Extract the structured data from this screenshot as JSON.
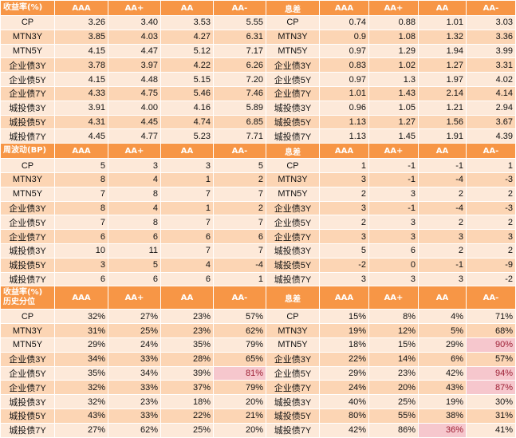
{
  "columns": [
    "AAA",
    "AA+",
    "AA",
    "AA-"
  ],
  "rows": [
    "CP",
    "MTN3Y",
    "MTN5Y",
    "企业债3Y",
    "企业债5Y",
    "企业债7Y",
    "城投债3Y",
    "城投债5Y",
    "城投债7Y"
  ],
  "sections": [
    {
      "left_title": "收益率(%)",
      "right_title": "息差",
      "left_values": [
        [
          "3.26",
          "3.40",
          "3.53",
          "5.55"
        ],
        [
          "3.85",
          "4.03",
          "4.27",
          "6.31"
        ],
        [
          "4.15",
          "4.47",
          "5.12",
          "7.17"
        ],
        [
          "3.78",
          "3.97",
          "4.22",
          "6.26"
        ],
        [
          "4.15",
          "4.48",
          "5.15",
          "7.20"
        ],
        [
          "4.33",
          "4.75",
          "5.46",
          "7.46"
        ],
        [
          "3.91",
          "4.00",
          "4.16",
          "5.89"
        ],
        [
          "4.31",
          "4.45",
          "4.74",
          "6.85"
        ],
        [
          "4.45",
          "4.77",
          "5.23",
          "7.71"
        ]
      ],
      "right_values": [
        [
          "0.74",
          "0.88",
          "1.01",
          "3.03"
        ],
        [
          "0.9",
          "1.08",
          "1.32",
          "3.36"
        ],
        [
          "0.97",
          "1.29",
          "1.94",
          "3.99"
        ],
        [
          "0.83",
          "1.02",
          "1.27",
          "3.31"
        ],
        [
          "0.97",
          "1.3",
          "1.97",
          "4.02"
        ],
        [
          "1.01",
          "1.43",
          "2.14",
          "4.14"
        ],
        [
          "0.96",
          "1.05",
          "1.21",
          "2.94"
        ],
        [
          "1.13",
          "1.27",
          "1.56",
          "3.67"
        ],
        [
          "1.13",
          "1.45",
          "1.91",
          "4.39"
        ]
      ]
    },
    {
      "left_title": "周波动(BP)",
      "right_title": "息差",
      "left_values": [
        [
          "5",
          "3",
          "3",
          "5"
        ],
        [
          "8",
          "4",
          "1",
          "2"
        ],
        [
          "7",
          "8",
          "7",
          "7"
        ],
        [
          "8",
          "4",
          "1",
          "2"
        ],
        [
          "7",
          "8",
          "7",
          "7"
        ],
        [
          "6",
          "6",
          "6",
          "6"
        ],
        [
          "10",
          "11",
          "7",
          "7"
        ],
        [
          "3",
          "5",
          "4",
          "-4"
        ],
        [
          "6",
          "6",
          "6",
          "1"
        ]
      ],
      "right_values": [
        [
          "1",
          "-1",
          "-1",
          "1"
        ],
        [
          "3",
          "-1",
          "-4",
          "-3"
        ],
        [
          "2",
          "3",
          "2",
          "2"
        ],
        [
          "3",
          "-1",
          "-4",
          "-3"
        ],
        [
          "2",
          "3",
          "2",
          "2"
        ],
        [
          "3",
          "3",
          "3",
          "3"
        ],
        [
          "5",
          "6",
          "2",
          "2"
        ],
        [
          "-2",
          "0",
          "-1",
          "-9"
        ],
        [
          "3",
          "3",
          "3",
          "-2"
        ]
      ]
    },
    {
      "left_title_line1": "收益率(%)",
      "left_title_line2": "历史分位",
      "right_title": "息差",
      "left_values": [
        [
          "32%",
          "27%",
          "23%",
          "57%"
        ],
        [
          "31%",
          "25%",
          "23%",
          "62%"
        ],
        [
          "29%",
          "24%",
          "35%",
          "79%"
        ],
        [
          "34%",
          "33%",
          "28%",
          "65%"
        ],
        [
          "35%",
          "34%",
          "39%",
          "81%"
        ],
        [
          "32%",
          "33%",
          "37%",
          "79%"
        ],
        [
          "32%",
          "23%",
          "18%",
          "20%"
        ],
        [
          "43%",
          "33%",
          "22%",
          "21%"
        ],
        [
          "27%",
          "62%",
          "25%",
          "20%"
        ]
      ],
      "right_values": [
        [
          "15%",
          "8%",
          "4%",
          "71%"
        ],
        [
          "19%",
          "12%",
          "5%",
          "68%"
        ],
        [
          "18%",
          "15%",
          "29%",
          "90%"
        ],
        [
          "22%",
          "14%",
          "6%",
          "57%"
        ],
        [
          "29%",
          "23%",
          "42%",
          "94%"
        ],
        [
          "24%",
          "20%",
          "43%",
          "87%"
        ],
        [
          "40%",
          "25%",
          "19%",
          "30%"
        ],
        [
          "80%",
          "55%",
          "38%",
          "31%"
        ],
        [
          "42%",
          "86%",
          "36%",
          "41%"
        ]
      ]
    }
  ],
  "colors": {
    "header_bg": "#f79646",
    "row_odd": "#fde9d9",
    "row_even": "#fcd5b4",
    "highlight": "#f6c7cd"
  }
}
